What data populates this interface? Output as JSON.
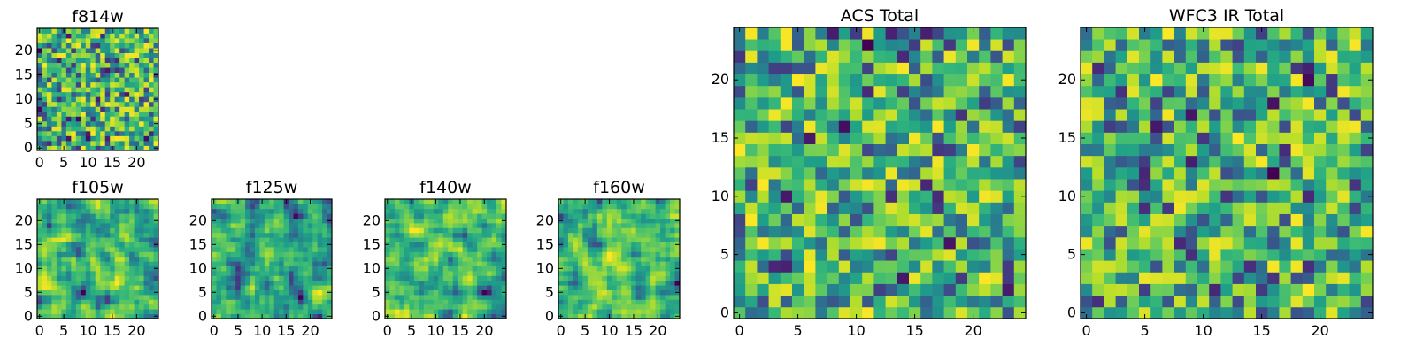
{
  "figure": {
    "description_free": true
  },
  "chart_data": [
    {
      "id": "f814w",
      "type": "heatmap",
      "title": "f814w",
      "grid_size": 25,
      "xlim": [
        0,
        24
      ],
      "ylim": [
        0,
        24
      ],
      "xticks": [
        0,
        5,
        10,
        15,
        20
      ],
      "yticks": [
        0,
        5,
        10,
        15,
        20
      ],
      "colormap": "viridis",
      "seed": 814,
      "smooth": 0
    },
    {
      "id": "f105w",
      "type": "heatmap",
      "title": "f105w",
      "grid_size": 25,
      "xlim": [
        0,
        24
      ],
      "ylim": [
        0,
        24
      ],
      "xticks": [
        0,
        5,
        10,
        15,
        20
      ],
      "yticks": [
        0,
        5,
        10,
        15,
        20
      ],
      "colormap": "viridis",
      "seed": 105,
      "smooth": 1
    },
    {
      "id": "f125w",
      "type": "heatmap",
      "title": "f125w",
      "grid_size": 25,
      "xlim": [
        0,
        24
      ],
      "ylim": [
        0,
        24
      ],
      "xticks": [
        0,
        5,
        10,
        15,
        20
      ],
      "yticks": [
        0,
        5,
        10,
        15,
        20
      ],
      "colormap": "viridis",
      "seed": 125,
      "smooth": 1
    },
    {
      "id": "f140w",
      "type": "heatmap",
      "title": "f140w",
      "grid_size": 25,
      "xlim": [
        0,
        24
      ],
      "ylim": [
        0,
        24
      ],
      "xticks": [
        0,
        5,
        10,
        15,
        20
      ],
      "yticks": [
        0,
        5,
        10,
        15,
        20
      ],
      "colormap": "viridis",
      "seed": 140,
      "smooth": 1
    },
    {
      "id": "f160w",
      "type": "heatmap",
      "title": "f160w",
      "grid_size": 25,
      "xlim": [
        0,
        24
      ],
      "ylim": [
        0,
        24
      ],
      "xticks": [
        0,
        5,
        10,
        15,
        20
      ],
      "yticks": [
        0,
        5,
        10,
        15,
        20
      ],
      "colormap": "viridis",
      "seed": 160,
      "smooth": 1
    },
    {
      "id": "acs-total",
      "type": "heatmap",
      "title": "ACS Total",
      "grid_size": 25,
      "xlim": [
        0,
        24
      ],
      "ylim": [
        0,
        24
      ],
      "xticks": [
        0,
        5,
        10,
        15,
        20
      ],
      "yticks": [
        0,
        5,
        10,
        15,
        20
      ],
      "colormap": "viridis",
      "seed": 7,
      "smooth": 0
    },
    {
      "id": "wfc3-ir-total",
      "type": "heatmap",
      "title": "WFC3 IR Total",
      "grid_size": 25,
      "xlim": [
        0,
        24
      ],
      "ylim": [
        0,
        24
      ],
      "xticks": [
        0,
        5,
        10,
        15,
        20
      ],
      "yticks": [
        0,
        5,
        10,
        15,
        20
      ],
      "colormap": "viridis",
      "seed": 3,
      "smooth": 0
    }
  ]
}
